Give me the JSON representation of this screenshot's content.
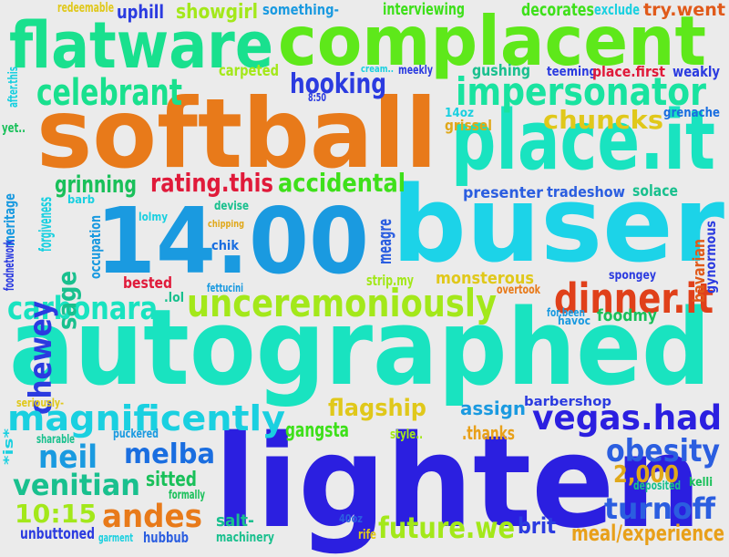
{
  "words": [
    {
      "text": "softball",
      "color": "#e87a1a"
    },
    {
      "text": "autographed",
      "color": "#19e3c0"
    },
    {
      "text": "lighten",
      "color": "#2b1fe0"
    },
    {
      "text": "buser",
      "color": "#1cd3e8"
    },
    {
      "text": "14.00",
      "color": "#1a9ae0"
    },
    {
      "text": "complacent",
      "color": "#5ee81a"
    },
    {
      "text": "flatware",
      "color": "#19e08e"
    },
    {
      "text": "place.it",
      "color": "#19e3c0"
    },
    {
      "text": "impersonator",
      "color": "#19e3a0"
    },
    {
      "text": "unceremoniously",
      "color": "#a3e81a"
    },
    {
      "text": "celebrant",
      "color": "#19e08e"
    },
    {
      "text": "carbonara",
      "color": "#19e3c0"
    },
    {
      "text": "hooking",
      "color": "#2b3be0"
    },
    {
      "text": "rating.this",
      "color": "#e01a3a"
    },
    {
      "text": "accidental",
      "color": "#3ee01a"
    },
    {
      "text": "dinner.it",
      "color": "#e0401a"
    },
    {
      "text": "chewey",
      "color": "#2b3be0"
    },
    {
      "text": "sage",
      "color": "#19c08e"
    },
    {
      "text": "grinning",
      "color": "#19c05a"
    },
    {
      "text": "chuncks",
      "color": "#e0c81a"
    },
    {
      "text": "magnificently",
      "color": "#1ad0e0"
    },
    {
      "text": "vegas.had",
      "color": "#2b1fe0"
    },
    {
      "text": "obesity",
      "color": "#2b5ee0"
    },
    {
      "text": "neil",
      "color": "#1a9ae0"
    },
    {
      "text": "melba",
      "color": "#1a6ee0"
    },
    {
      "text": "venitian",
      "color": "#19c08e"
    },
    {
      "text": "andes",
      "color": "#e87a1a"
    },
    {
      "text": "10:15",
      "color": "#a3e81a"
    },
    {
      "text": "future.we",
      "color": "#a3e81a"
    },
    {
      "text": "turnoff",
      "color": "#2b5ee0"
    },
    {
      "text": "flagship",
      "color": "#e0c81a"
    },
    {
      "text": "2,000",
      "color": "#e0a81a"
    },
    {
      "text": "brit",
      "color": "#2b3be0"
    },
    {
      "text": "meal/experience",
      "color": "#e8a01a"
    },
    {
      "text": "gangsta",
      "color": "#3ee01a"
    },
    {
      "text": "sitted",
      "color": "#19c05a"
    },
    {
      "text": "assign",
      "color": "#1a9ae0"
    },
    {
      "text": ".thanks",
      "color": "#e8a01a"
    },
    {
      "text": "uphill",
      "color": "#2b3be0"
    },
    {
      "text": "showgirl",
      "color": "#a3e81a"
    },
    {
      "text": "interviewing",
      "color": "#3ee01a"
    },
    {
      "text": "decorates",
      "color": "#3ee01a"
    },
    {
      "text": "try.went",
      "color": "#e05a1a"
    },
    {
      "text": "exclude",
      "color": "#1ad0e0"
    },
    {
      "text": "redeemable",
      "color": "#e0c81a"
    },
    {
      "text": "something-",
      "color": "#1a9ae0"
    },
    {
      "text": "carpeted",
      "color": "#a3e81a"
    },
    {
      "text": "gushing",
      "color": "#19c08e"
    },
    {
      "text": "teeming",
      "color": "#2b3be0"
    },
    {
      "text": "place.first",
      "color": "#e01a3a"
    },
    {
      "text": "weakly",
      "color": "#2b3be0"
    },
    {
      "text": "cream..",
      "color": "#1ad0e0"
    },
    {
      "text": "meekly",
      "color": "#2b3be0"
    },
    {
      "text": "8:50",
      "color": "#2b3be0"
    },
    {
      "text": "14oz",
      "color": "#1ad0e0"
    },
    {
      "text": "grissel",
      "color": "#e0a81a"
    },
    {
      "text": "grenache",
      "color": "#1a6ee0"
    },
    {
      "text": "after.this",
      "color": "#1ad0e0"
    },
    {
      "text": "yet..",
      "color": "#19c05a"
    },
    {
      "text": "meritage",
      "color": "#1a9ae0"
    },
    {
      "text": "barb",
      "color": "#1ad0e0"
    },
    {
      "text": "forgiveness",
      "color": "#1ad0e0"
    },
    {
      "text": "occupation",
      "color": "#1a9ae0"
    },
    {
      "text": "lolmy",
      "color": "#1ad0e0"
    },
    {
      "text": "devise",
      "color": "#19c08e"
    },
    {
      "text": "chipping",
      "color": "#e0a81a"
    },
    {
      "text": "chik",
      "color": "#1a6ee0"
    },
    {
      "text": "meagre",
      "color": "#2b5ee0"
    },
    {
      "text": "presenter",
      "color": "#2b5ee0"
    },
    {
      "text": "tradeshow",
      "color": "#2b5ee0"
    },
    {
      "text": "solace",
      "color": "#19c08e"
    },
    {
      "text": "foodnetwork",
      "color": "#2b3be0"
    },
    {
      "text": "bested",
      "color": "#e01a3a"
    },
    {
      "text": "fettucini",
      "color": "#1a9ae0"
    },
    {
      "text": ".lol",
      "color": "#19c08e"
    },
    {
      "text": "strip.my",
      "color": "#a3e81a"
    },
    {
      "text": "monsterous",
      "color": "#e0c81a"
    },
    {
      "text": "overtook",
      "color": "#e87a1a"
    },
    {
      "text": "spongey",
      "color": "#2b3be0"
    },
    {
      "text": "bavarian",
      "color": "#e05a1a"
    },
    {
      "text": "gynormous",
      "color": "#2b3be0"
    },
    {
      "text": "for.been",
      "color": "#1a9ae0"
    },
    {
      "text": "havoc",
      "color": "#1a9ae0"
    },
    {
      "text": "foodmy",
      "color": "#19c05a"
    },
    {
      "text": "seriously-",
      "color": "#e0c81a"
    },
    {
      "text": "barbershop",
      "color": "#2b3be0"
    },
    {
      "text": "*is*",
      "color": "#1ad0e0"
    },
    {
      "text": "sharable",
      "color": "#19c08e"
    },
    {
      "text": "puckered",
      "color": "#1a9ae0"
    },
    {
      "text": "style..",
      "color": "#a3e81a"
    },
    {
      "text": "deposited",
      "color": "#19c08e"
    },
    {
      "text": "kelli",
      "color": "#19c05a"
    },
    {
      "text": "formally",
      "color": "#19c05a"
    },
    {
      "text": "salt-",
      "color": "#19c08e"
    },
    {
      "text": "machinery",
      "color": "#19c08e"
    },
    {
      "text": "40oz",
      "color": "#2b5ee0"
    },
    {
      "text": "rife",
      "color": "#e0c81a"
    },
    {
      "text": "unbuttoned",
      "color": "#2b3be0"
    },
    {
      "text": "garment",
      "color": "#1ad0e0"
    },
    {
      "text": "hubbub",
      "color": "#2b5ee0"
    }
  ]
}
